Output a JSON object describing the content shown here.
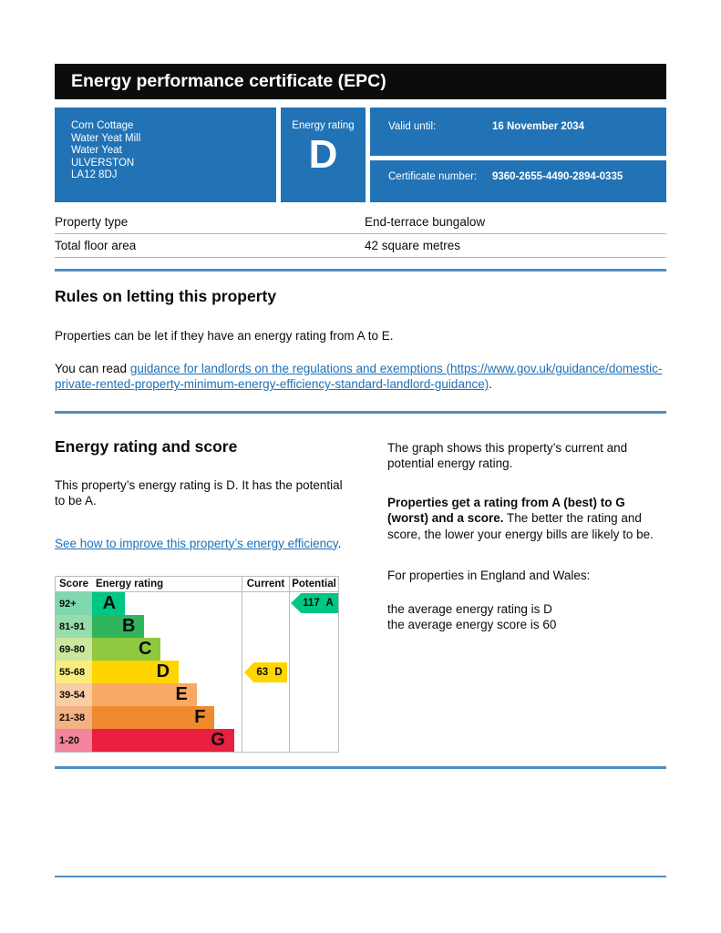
{
  "header": {
    "title": "Energy performance certificate (EPC)"
  },
  "summary": {
    "address_line1": "Corn Cottage",
    "address_line2": "Water Yeat Mill",
    "address_line3": "Water Yeat",
    "address_line4": "ULVERSTON",
    "address_line5": "LA12 8DJ",
    "energy_rating_label": "Energy rating",
    "energy_rating": "D",
    "valid_until_label": "Valid until:",
    "valid_until_value": "16 November 2034",
    "certificate_number_label": "Certificate number:",
    "certificate_number_value": "9360-2655-4490-2894-0335"
  },
  "property_table": {
    "rows": [
      {
        "label": "Property type",
        "value": "End-terrace bungalow"
      },
      {
        "label": "Total floor area",
        "value": "42 square metres"
      }
    ]
  },
  "letting_section": {
    "heading": "Rules on letting this property",
    "para1": "Properties can be let if they have an energy rating from A to E.",
    "para2_prefix": "You can read ",
    "para2_link": "guidance for landlords on the regulations and exemptions (https://www.gov.uk/guidance/domestic-private-rented-property-minimum-energy-efficiency-standard-landlord-guidance)",
    "para2_suffix": "."
  },
  "rating_section": {
    "heading": "Energy rating and score",
    "para1": "This property’s energy rating is D. It has the potential to be A.",
    "link": "See how to improve this property’s energy efficiency",
    "link_suffix": ".",
    "right_para1": "The graph shows this property’s current and potential energy rating.",
    "right_para2_bold": "Properties get a rating from A (best) to G (worst) and a score.",
    "right_para2_rest": " The better the rating and score, the lower your energy bills are likely to be.",
    "right_para3": "For properties in England and Wales:",
    "right_para4_line1": "the average energy rating is D",
    "right_para4_line2": "the average energy score is 60"
  },
  "chart_data": {
    "type": "bar",
    "title": "EPC energy rating and score graph",
    "headers": {
      "score": "Score",
      "rating": "Energy rating",
      "current": "Current",
      "potential": "Potential"
    },
    "bands": [
      {
        "score_range": "92+",
        "letter": "A",
        "color": "#00c781",
        "light_color": "#7fd8ae",
        "width_pct": 22
      },
      {
        "score_range": "81-91",
        "letter": "B",
        "color": "#30b55e",
        "light_color": "#97dcab",
        "width_pct": 35
      },
      {
        "score_range": "69-80",
        "letter": "C",
        "color": "#90c83f",
        "light_color": "#cbe79c",
        "width_pct": 46
      },
      {
        "score_range": "55-68",
        "letter": "D",
        "color": "#ffd500",
        "light_color": "#f9ee7d",
        "width_pct": 58
      },
      {
        "score_range": "39-54",
        "letter": "E",
        "color": "#f8a963",
        "light_color": "#f9cda4",
        "width_pct": 70
      },
      {
        "score_range": "21-38",
        "letter": "F",
        "color": "#ef8a2f",
        "light_color": "#f4b183",
        "width_pct": 82
      },
      {
        "score_range": "1-20",
        "letter": "G",
        "color": "#e9203f",
        "light_color": "#f2849c",
        "width_pct": 95
      }
    ],
    "current": {
      "score": 63,
      "band": "D",
      "label": "63 D",
      "color": "#ffd500"
    },
    "potential": {
      "score": 117,
      "band": "A",
      "label": "117 A",
      "color": "#00c781"
    }
  },
  "colors": {
    "panel_blue": "#2173b6",
    "rule_blue": "#4e8fc4",
    "link_blue": "#1d70b8",
    "header_black": "#0b0c0c"
  }
}
